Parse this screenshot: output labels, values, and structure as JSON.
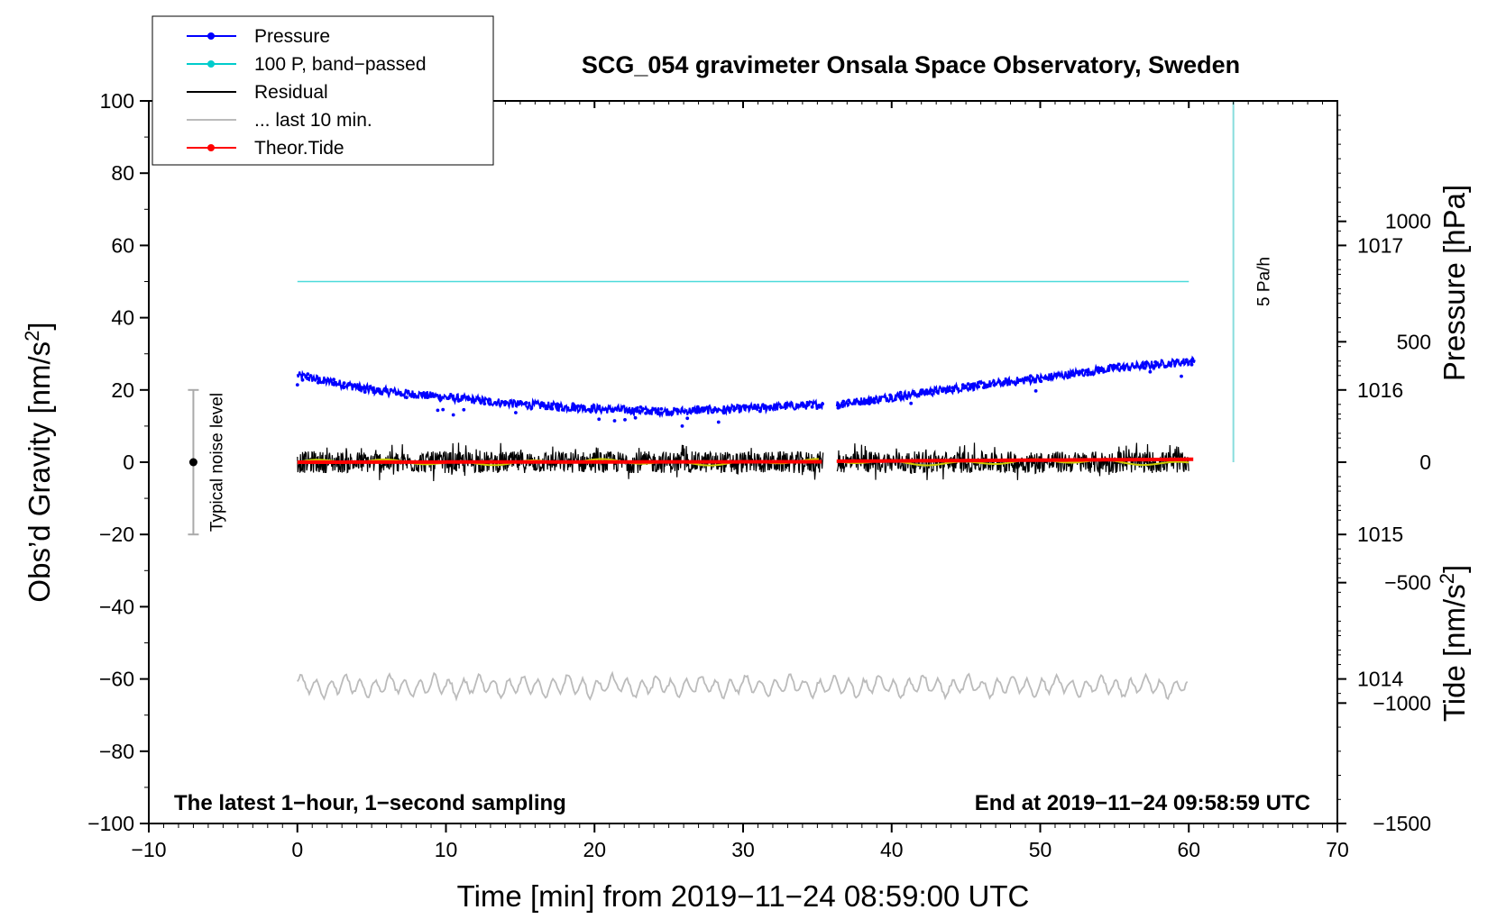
{
  "chart_data": {
    "type": "line",
    "title": "SCG_054 gravimeter Onsala Space Observatory, Sweden",
    "xlabel": "Time [min] from 2019−11−24 08:59:00 UTC",
    "ylabel_left": "Obs’d Gravity [nm/s",
    "ylabel_left_sup": "2",
    "ylabel_left_close": "]",
    "ylabel_pressure": "Pressure [hPa]",
    "ylabel_tide": "Tide [nm/s",
    "ylabel_tide_sup": "2",
    "ylabel_tide_close": "]",
    "xlim": [
      -10,
      70
    ],
    "ylim_left": [
      -100,
      100
    ],
    "pressure_ylim": [
      1013,
      1018
    ],
    "tide_ylim": [
      -1500,
      1500
    ],
    "x_ticks": [
      -10,
      0,
      10,
      20,
      30,
      40,
      50,
      60,
      70
    ],
    "x_tick_labels": [
      "−10",
      "0",
      "10",
      "20",
      "30",
      "40",
      "50",
      "60",
      "70"
    ],
    "y_ticks_left": [
      -100,
      -80,
      -60,
      -40,
      -20,
      0,
      20,
      40,
      60,
      80,
      100
    ],
    "y_tick_labels_left": [
      "−100",
      "−80",
      "−60",
      "−40",
      "−20",
      "0",
      "20",
      "40",
      "60",
      "80",
      "100"
    ],
    "pressure_ticks": [
      1014,
      1015,
      1016,
      1017
    ],
    "pressure_tick_labels": [
      "1014",
      "1015",
      "1016",
      "1017"
    ],
    "tide_ticks": [
      -1500,
      -1000,
      -500,
      0,
      500,
      1000
    ],
    "tide_tick_labels": [
      "−1500",
      "−1000",
      "−500",
      "0",
      "500",
      "1000"
    ],
    "legend_position": "top-left",
    "legend": [
      {
        "label": "Pressure",
        "color": "#0000ff",
        "marker": true
      },
      {
        "label": "100 P, band−passed",
        "color": "#00cccc",
        "marker": true
      },
      {
        "label": "Residual",
        "color": "#000000",
        "marker": false
      },
      {
        "label": "... last 10 min.",
        "color": "#bbbbbb",
        "marker": false
      },
      {
        "label": "Theor.Tide",
        "color": "#ff0000",
        "marker": true
      }
    ],
    "series": [
      {
        "name": "Pressure",
        "axis": "pressure",
        "color": "#0000ff",
        "gap": [
          35.4,
          36.3
        ],
        "x": [
          0,
          5,
          10,
          15,
          20,
          25,
          30,
          35.3,
          36.4,
          40,
          45,
          50,
          55,
          60.4
        ],
        "y": [
          1016.1,
          1016.0,
          1015.95,
          1015.9,
          1015.87,
          1015.85,
          1015.87,
          1015.9,
          1015.9,
          1015.95,
          1016.02,
          1016.08,
          1016.15,
          1016.2
        ]
      },
      {
        "name": "100 P, band−passed",
        "axis": "left",
        "color": "#00cccc",
        "x": [
          0,
          60
        ],
        "y": [
          50,
          50
        ]
      },
      {
        "name": "Residual",
        "axis": "left",
        "color": "#000000",
        "gap": [
          35.4,
          36.3
        ],
        "x": [
          0,
          35.3,
          36.4,
          60
        ],
        "y": [
          0,
          0,
          0,
          0
        ],
        "noise_amplitude": 3
      },
      {
        "name": "... last 10 min.",
        "axis": "left",
        "color": "#bbbbbb",
        "x": [
          0,
          60
        ],
        "y": [
          -62,
          -62
        ],
        "amplitude": 3
      },
      {
        "name": "Theor.Tide",
        "axis": "tide",
        "color": "#ff0000",
        "gap": [
          35.4,
          36.3
        ],
        "x": [
          0,
          35.4,
          36.3,
          60.4
        ],
        "y": [
          0,
          2,
          4,
          12
        ]
      }
    ],
    "rate_bar": {
      "label": "5 Pa/h",
      "x": 63,
      "y_range": [
        0,
        100
      ],
      "color": "#88dddd"
    },
    "noise_bar": {
      "label": "Typical noise level",
      "x": -7,
      "y": 0,
      "range": [
        -20,
        20
      ]
    },
    "annotation_left": "The latest 1−hour, 1−second sampling",
    "annotation_right": "End at 2019−11−24 09:58:59 UTC"
  }
}
